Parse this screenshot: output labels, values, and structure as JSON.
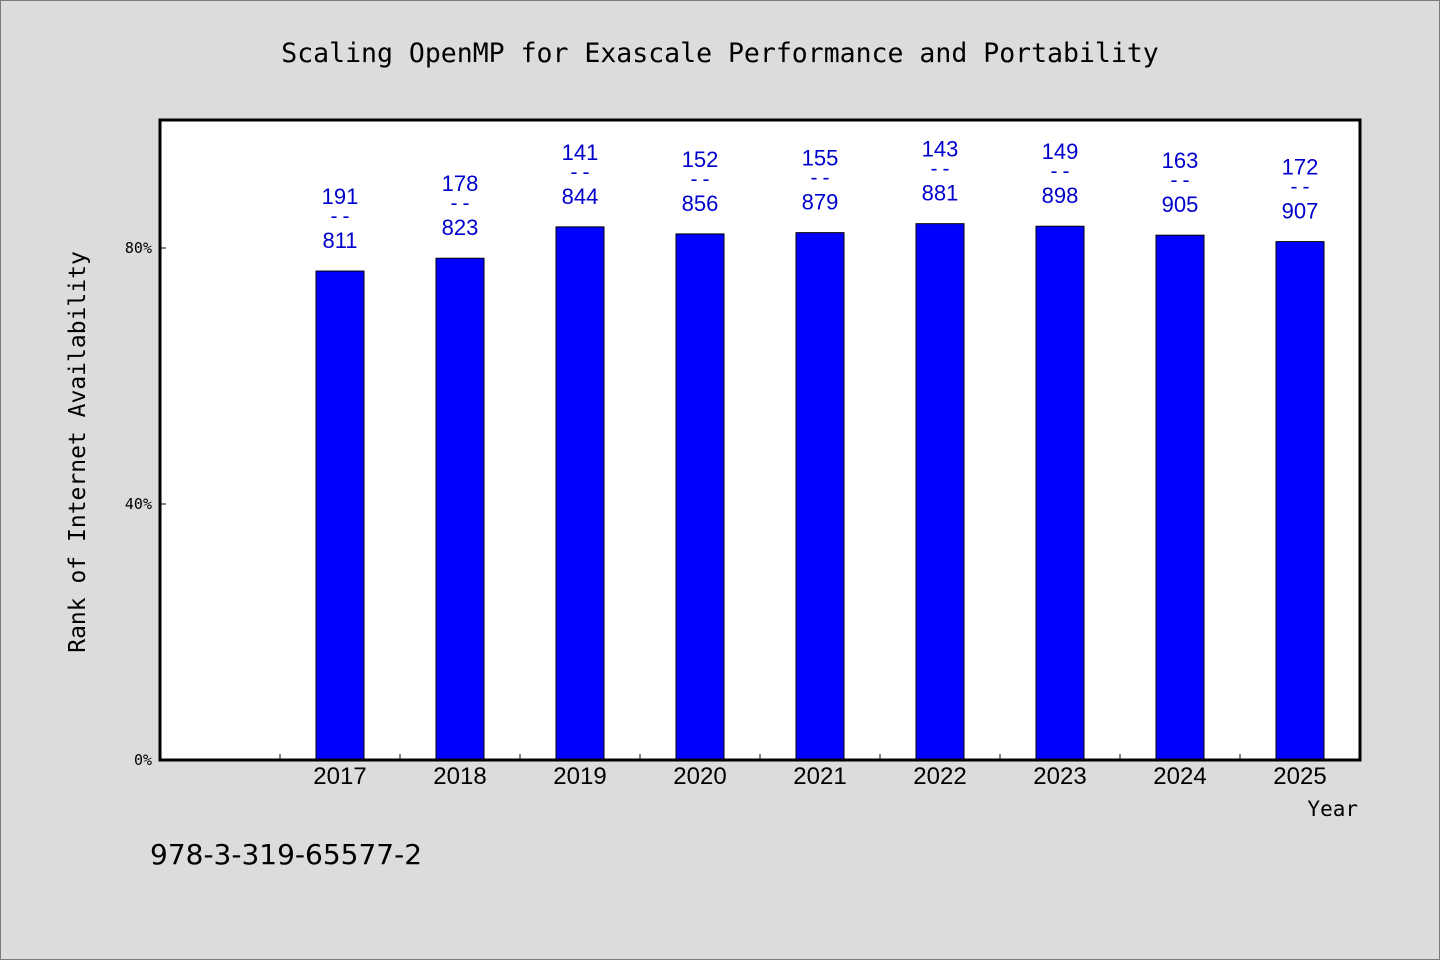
{
  "chart_data": {
    "type": "bar",
    "title": "Scaling OpenMP for Exascale Performance and Portability",
    "xlabel": "Year",
    "ylabel": "Rank of Internet Availability",
    "categories": [
      "2017",
      "2018",
      "2019",
      "2020",
      "2021",
      "2022",
      "2023",
      "2024",
      "2025"
    ],
    "values": [
      76.4,
      78.4,
      83.3,
      82.2,
      82.4,
      83.8,
      83.4,
      82.0,
      81.0
    ],
    "value_unit": "%",
    "data_labels": [
      {
        "top": "191",
        "separator": "--",
        "bottom": "811"
      },
      {
        "top": "178",
        "separator": "--",
        "bottom": "823"
      },
      {
        "top": "141",
        "separator": "--",
        "bottom": "844"
      },
      {
        "top": "152",
        "separator": "--",
        "bottom": "856"
      },
      {
        "top": "155",
        "separator": "--",
        "bottom": "879"
      },
      {
        "top": "143",
        "separator": "--",
        "bottom": "881"
      },
      {
        "top": "149",
        "separator": "--",
        "bottom": "898"
      },
      {
        "top": "163",
        "separator": "--",
        "bottom": "905"
      },
      {
        "top": "172",
        "separator": "--",
        "bottom": "907"
      }
    ],
    "xlim": [
      2015.5,
      2025.5
    ],
    "ylim": [
      0,
      100
    ],
    "yticks": [
      0,
      40,
      80
    ],
    "ytick_labels": [
      "0%",
      "40%",
      "80%"
    ],
    "grid": false,
    "legend": "none",
    "colors": {
      "bar": "#0000ff",
      "bar_edge": "#000000",
      "data_label": "#0000cc",
      "plot_background": "#ffffff",
      "page_background": "#dcdcdc",
      "frame": "#000000"
    }
  },
  "footnote": "978-3-319-65577-2"
}
